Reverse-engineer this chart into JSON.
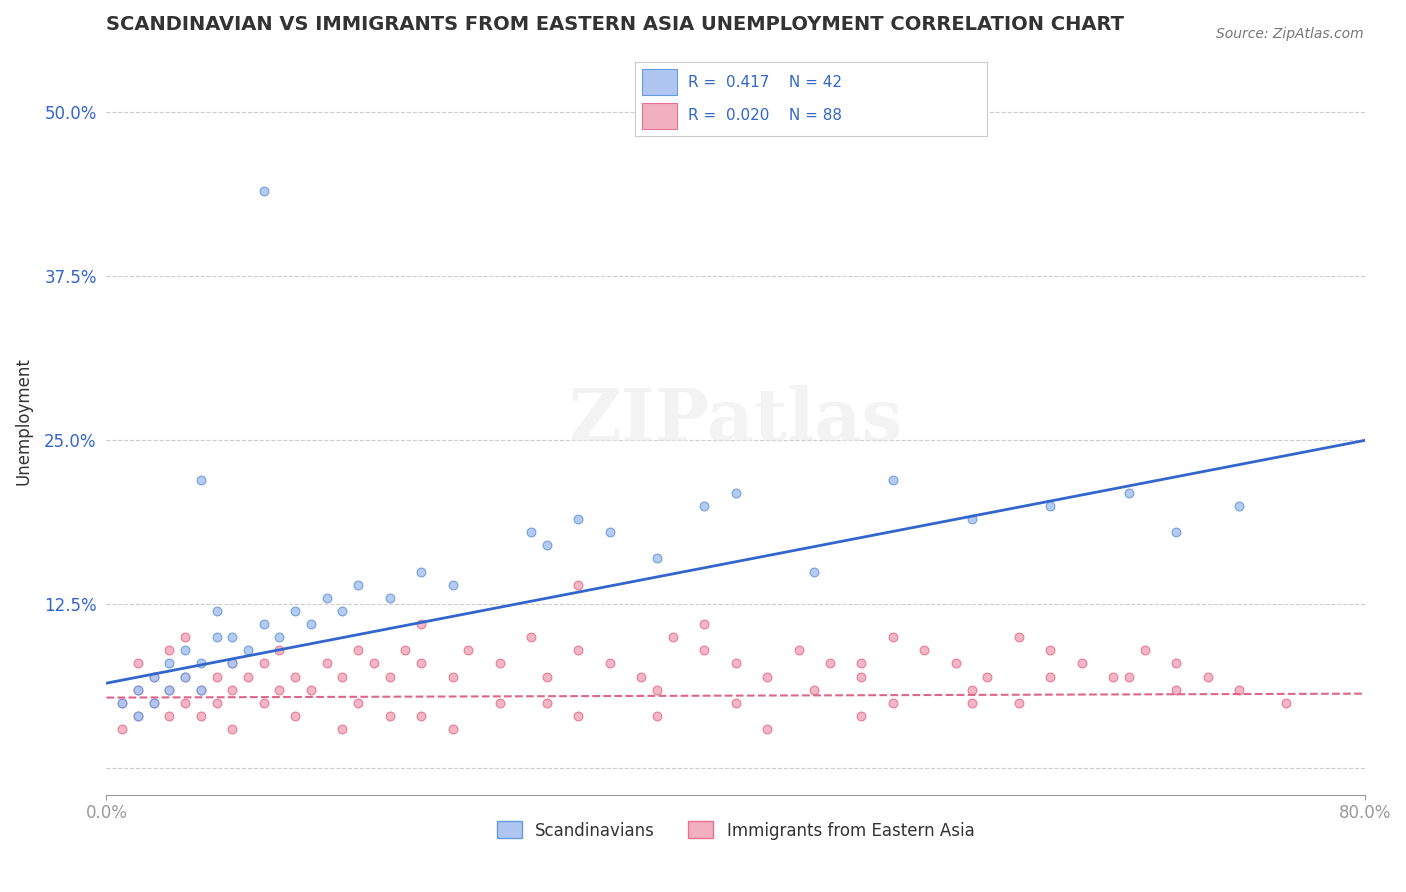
{
  "title": "SCANDINAVIAN VS IMMIGRANTS FROM EASTERN ASIA UNEMPLOYMENT CORRELATION CHART",
  "source": "Source: ZipAtlas.com",
  "xlabel": "",
  "ylabel": "Unemployment",
  "xlim": [
    0.0,
    0.8
  ],
  "ylim": [
    -0.02,
    0.55
  ],
  "yticks": [
    0.0,
    0.125,
    0.25,
    0.375,
    0.5
  ],
  "ytick_labels": [
    "",
    "12.5%",
    "25.0%",
    "37.5%",
    "50.0%"
  ],
  "xticks": [
    0.0,
    0.8
  ],
  "xtick_labels": [
    "0.0%",
    "80.0%"
  ],
  "legend_entries": [
    {
      "label": "R =  0.417    N = 42",
      "color": "#aec6f0",
      "text_color": "#3366cc"
    },
    {
      "label": "R =  0.020    N = 88",
      "color": "#f0b0c0",
      "text_color": "#3366cc"
    }
  ],
  "blue_scatter": [
    [
      0.01,
      0.05
    ],
    [
      0.02,
      0.04
    ],
    [
      0.02,
      0.06
    ],
    [
      0.03,
      0.05
    ],
    [
      0.03,
      0.07
    ],
    [
      0.04,
      0.06
    ],
    [
      0.04,
      0.08
    ],
    [
      0.05,
      0.07
    ],
    [
      0.05,
      0.09
    ],
    [
      0.06,
      0.06
    ],
    [
      0.06,
      0.08
    ],
    [
      0.07,
      0.1
    ],
    [
      0.07,
      0.12
    ],
    [
      0.08,
      0.08
    ],
    [
      0.08,
      0.1
    ],
    [
      0.09,
      0.09
    ],
    [
      0.1,
      0.11
    ],
    [
      0.11,
      0.1
    ],
    [
      0.12,
      0.12
    ],
    [
      0.13,
      0.11
    ],
    [
      0.14,
      0.13
    ],
    [
      0.15,
      0.12
    ],
    [
      0.16,
      0.14
    ],
    [
      0.18,
      0.13
    ],
    [
      0.2,
      0.15
    ],
    [
      0.22,
      0.14
    ],
    [
      0.06,
      0.22
    ],
    [
      0.1,
      0.44
    ],
    [
      0.27,
      0.18
    ],
    [
      0.28,
      0.17
    ],
    [
      0.3,
      0.19
    ],
    [
      0.32,
      0.18
    ],
    [
      0.35,
      0.16
    ],
    [
      0.38,
      0.2
    ],
    [
      0.4,
      0.21
    ],
    [
      0.45,
      0.15
    ],
    [
      0.5,
      0.22
    ],
    [
      0.55,
      0.19
    ],
    [
      0.6,
      0.2
    ],
    [
      0.65,
      0.21
    ],
    [
      0.68,
      0.18
    ],
    [
      0.72,
      0.2
    ]
  ],
  "pink_scatter": [
    [
      0.01,
      0.03
    ],
    [
      0.01,
      0.05
    ],
    [
      0.02,
      0.04
    ],
    [
      0.02,
      0.06
    ],
    [
      0.02,
      0.08
    ],
    [
      0.03,
      0.05
    ],
    [
      0.03,
      0.07
    ],
    [
      0.04,
      0.04
    ],
    [
      0.04,
      0.06
    ],
    [
      0.04,
      0.09
    ],
    [
      0.05,
      0.05
    ],
    [
      0.05,
      0.07
    ],
    [
      0.05,
      0.1
    ],
    [
      0.06,
      0.04
    ],
    [
      0.06,
      0.06
    ],
    [
      0.07,
      0.05
    ],
    [
      0.07,
      0.07
    ],
    [
      0.08,
      0.06
    ],
    [
      0.08,
      0.08
    ],
    [
      0.09,
      0.07
    ],
    [
      0.1,
      0.05
    ],
    [
      0.1,
      0.08
    ],
    [
      0.11,
      0.06
    ],
    [
      0.11,
      0.09
    ],
    [
      0.12,
      0.07
    ],
    [
      0.13,
      0.06
    ],
    [
      0.14,
      0.08
    ],
    [
      0.15,
      0.07
    ],
    [
      0.16,
      0.09
    ],
    [
      0.17,
      0.08
    ],
    [
      0.18,
      0.07
    ],
    [
      0.19,
      0.09
    ],
    [
      0.2,
      0.08
    ],
    [
      0.22,
      0.07
    ],
    [
      0.23,
      0.09
    ],
    [
      0.25,
      0.08
    ],
    [
      0.27,
      0.1
    ],
    [
      0.28,
      0.07
    ],
    [
      0.3,
      0.09
    ],
    [
      0.32,
      0.08
    ],
    [
      0.34,
      0.07
    ],
    [
      0.36,
      0.1
    ],
    [
      0.38,
      0.09
    ],
    [
      0.4,
      0.08
    ],
    [
      0.42,
      0.07
    ],
    [
      0.44,
      0.09
    ],
    [
      0.46,
      0.08
    ],
    [
      0.48,
      0.07
    ],
    [
      0.5,
      0.1
    ],
    [
      0.52,
      0.09
    ],
    [
      0.54,
      0.08
    ],
    [
      0.56,
      0.07
    ],
    [
      0.58,
      0.1
    ],
    [
      0.6,
      0.09
    ],
    [
      0.3,
      0.14
    ],
    [
      0.62,
      0.08
    ],
    [
      0.64,
      0.07
    ],
    [
      0.38,
      0.11
    ],
    [
      0.66,
      0.09
    ],
    [
      0.68,
      0.08
    ],
    [
      0.7,
      0.07
    ],
    [
      0.12,
      0.04
    ],
    [
      0.16,
      0.05
    ],
    [
      0.2,
      0.04
    ],
    [
      0.25,
      0.05
    ],
    [
      0.35,
      0.06
    ],
    [
      0.4,
      0.05
    ],
    [
      0.45,
      0.06
    ],
    [
      0.5,
      0.05
    ],
    [
      0.55,
      0.06
    ],
    [
      0.08,
      0.03
    ],
    [
      0.18,
      0.04
    ],
    [
      0.28,
      0.05
    ],
    [
      0.6,
      0.07
    ],
    [
      0.48,
      0.08
    ],
    [
      0.55,
      0.05
    ],
    [
      0.2,
      0.11
    ],
    [
      0.72,
      0.06
    ],
    [
      0.65,
      0.07
    ],
    [
      0.3,
      0.04
    ],
    [
      0.15,
      0.03
    ],
    [
      0.35,
      0.04
    ],
    [
      0.42,
      0.03
    ],
    [
      0.58,
      0.05
    ],
    [
      0.68,
      0.06
    ],
    [
      0.75,
      0.05
    ],
    [
      0.22,
      0.03
    ],
    [
      0.48,
      0.04
    ]
  ],
  "blue_line": {
    "x0": 0.0,
    "y0": 0.065,
    "x1": 0.8,
    "y1": 0.25
  },
  "pink_line": {
    "x0": 0.0,
    "y0": 0.054,
    "x1": 0.8,
    "y1": 0.057
  },
  "scatter_size": 40,
  "blue_color": "#6699dd",
  "blue_fill": "#aec6f0",
  "pink_color": "#e87090",
  "pink_fill": "#f0b0c0",
  "line_blue": "#3366cc",
  "line_pink": "#dd6688",
  "watermark": "ZIPatlas",
  "background_color": "#ffffff",
  "grid_color": "#cccccc"
}
